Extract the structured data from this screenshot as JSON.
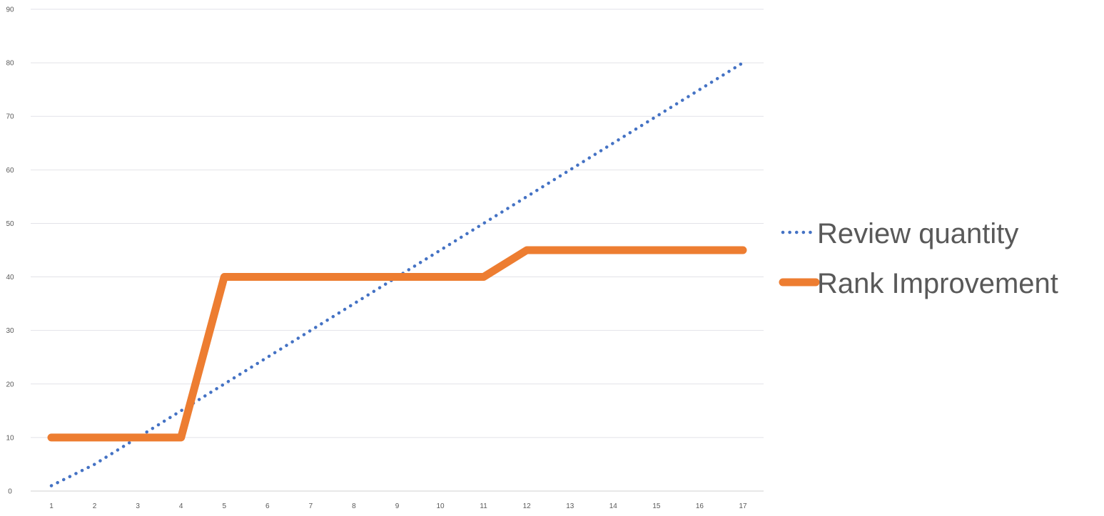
{
  "chart_data": {
    "type": "line",
    "title": "",
    "xlabel": "",
    "ylabel": "",
    "categories": [
      "1",
      "2",
      "3",
      "4",
      "5",
      "6",
      "7",
      "8",
      "9",
      "10",
      "11",
      "12",
      "13",
      "14",
      "15",
      "16",
      "17"
    ],
    "ylim": [
      0,
      90
    ],
    "yticks": [
      0,
      10,
      20,
      30,
      40,
      50,
      60,
      70,
      80,
      90
    ],
    "grid": true,
    "legend_position": "right",
    "series": [
      {
        "name": "Review quantity",
        "style": "dotted",
        "color": "#4472C4",
        "values": [
          1,
          5,
          10,
          15,
          20,
          25,
          30,
          35,
          40,
          45,
          50,
          55,
          60,
          65,
          70,
          75,
          80
        ]
      },
      {
        "name": "Rank Improvement",
        "style": "solid",
        "color": "#ED7D31",
        "values": [
          10,
          10,
          10,
          10,
          40,
          40,
          40,
          40,
          40,
          40,
          40,
          45,
          45,
          45,
          45,
          45,
          45
        ]
      }
    ]
  }
}
